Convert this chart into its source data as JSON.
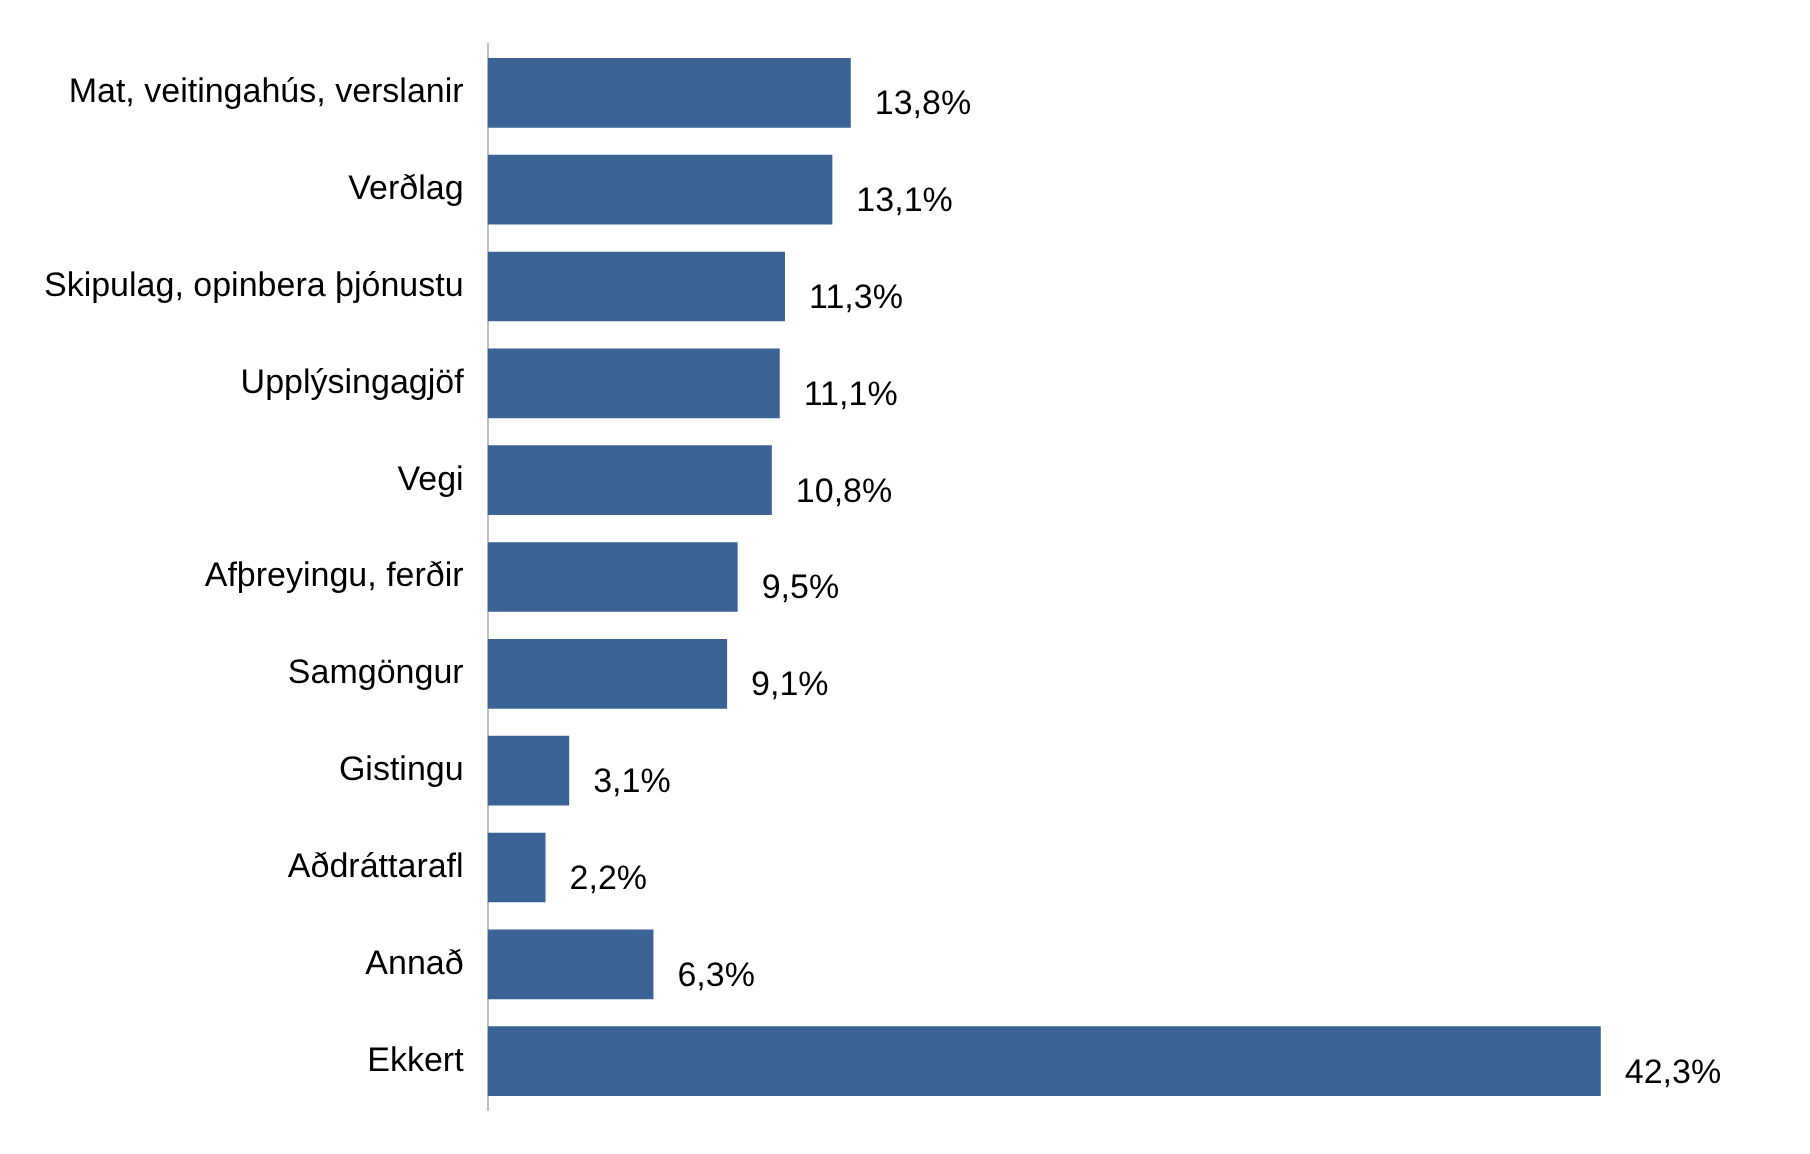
{
  "chart_data": {
    "type": "bar",
    "orientation": "horizontal",
    "categories": [
      "Mat, veitingahús, verslanir",
      "Verðlag",
      "Skipulag, opinbera þjónustu",
      "Upplýsingagjöf",
      "Vegi",
      "Afþreyingu, ferðir",
      "Samgöngur",
      "Gistingu",
      "Aðdráttarafl",
      "Annað",
      "Ekkert"
    ],
    "values": [
      13.8,
      13.1,
      11.3,
      11.1,
      10.8,
      9.5,
      9.1,
      3.1,
      2.2,
      6.3,
      42.3
    ],
    "value_labels": [
      "13,8%",
      "13,1%",
      "11,3%",
      "11,1%",
      "10,8%",
      "9,5%",
      "9,1%",
      "3,1%",
      "2,2%",
      "6,3%",
      "42,3%"
    ],
    "color": "#3b6396"
  }
}
